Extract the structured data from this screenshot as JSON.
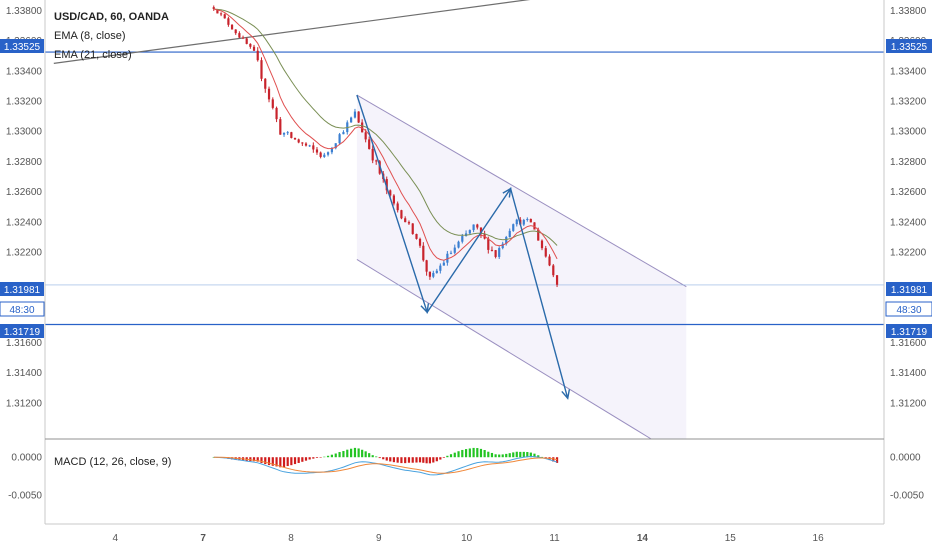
{
  "legend": {
    "symbol": "USD/CAD, 60, OANDA",
    "ema_fast": "EMA (8, close)",
    "ema_slow": "EMA (21, close)",
    "macd": "MACD (12, 26, close, 9)"
  },
  "price_tags": {
    "resistance": "1.33525",
    "last_price": "1.31981",
    "countdown": "48:30",
    "support": "1.31719"
  },
  "colors": {
    "up_candle": "#3b7fd1",
    "down_candle": "#c8232c",
    "ema_fast": "#e05050",
    "ema_slow": "#7a8f55",
    "horizontal_line": "#2962c8",
    "channel_line": "#9a8fc0",
    "channel_fill": "#f5f3fb",
    "trend_arrow": "#2a6aaa",
    "macd_line": "#4aa3df",
    "signal_line": "#f0883a",
    "hist_positive": "#22c422",
    "hist_negative": "#d01c1c"
  },
  "chart_data": {
    "type": "candlestick",
    "symbol": "USD/CAD",
    "timeframe": "60",
    "source": "OANDA",
    "price_ticks": [
      "1.33800",
      "1.33600",
      "1.33400",
      "1.33200",
      "1.33000",
      "1.32800",
      "1.32600",
      "1.32400",
      "1.32200",
      "1.31600",
      "1.31400",
      "1.31200"
    ],
    "x_ticks": [
      "4",
      "7",
      "8",
      "9",
      "10",
      "11",
      "14",
      "15",
      "16"
    ],
    "bold_x_ticks": [
      "7",
      "14"
    ],
    "x_tick_positions": [
      3.7,
      4.7,
      5.7,
      6.7,
      7.7,
      8.7,
      9.7,
      10.7,
      11.7
    ],
    "ylim": [
      1.3096,
      1.3387
    ],
    "xlim": [
      2.9,
      12.45
    ],
    "macd_ticks": [
      "0.0000",
      "-0.0050"
    ],
    "macd_ylim": [
      -0.0088,
      0.0024
    ],
    "horizontal_levels": [
      {
        "price": 1.33525
      },
      {
        "price": 1.31719
      }
    ],
    "last_price": 1.31981,
    "upper_trendline": [
      [
        3.0,
        1.3345
      ],
      [
        8.5,
        1.3388
      ]
    ],
    "channel": {
      "upper": [
        [
          6.45,
          1.3324
        ],
        [
          10.2,
          1.3197
        ]
      ],
      "lower": [
        [
          6.45,
          1.3215
        ],
        [
          9.8,
          1.3096
        ]
      ],
      "fill_right_x": 10.2
    },
    "zigzag": [
      [
        6.45,
        1.3324
      ],
      [
        7.25,
        1.318
      ],
      [
        8.2,
        1.3262
      ],
      [
        8.85,
        1.3123
      ]
    ],
    "candle_segments": [
      {
        "x": [
          4.8,
          5.3
        ],
        "price": [
          1.3385,
          1.3352
        ],
        "vol": 0.00015
      },
      {
        "x": [
          5.3,
          5.6
        ],
        "price": [
          1.3352,
          1.33
        ],
        "vol": 0.0003
      },
      {
        "x": [
          5.6,
          6.1
        ],
        "price": [
          1.33,
          1.3283
        ],
        "vol": 0.00025
      },
      {
        "x": [
          6.1,
          6.45
        ],
        "price": [
          1.3283,
          1.3312
        ],
        "vol": 0.0002
      },
      {
        "x": [
          6.45,
          6.85
        ],
        "price": [
          1.3312,
          1.3255
        ],
        "vol": 0.0003
      },
      {
        "x": [
          6.85,
          7.15
        ],
        "price": [
          1.3255,
          1.323
        ],
        "vol": 0.0002
      },
      {
        "x": [
          7.15,
          7.3
        ],
        "price": [
          1.323,
          1.3201
        ],
        "vol": 0.0003
      },
      {
        "x": [
          7.3,
          7.5
        ],
        "price": [
          1.3201,
          1.3217
        ],
        "vol": 0.00025
      },
      {
        "x": [
          7.5,
          7.8
        ],
        "price": [
          1.3217,
          1.3237
        ],
        "vol": 0.00025
      },
      {
        "x": [
          7.8,
          8.05
        ],
        "price": [
          1.3237,
          1.3218
        ],
        "vol": 0.0003
      },
      {
        "x": [
          8.05,
          8.25
        ],
        "price": [
          1.3218,
          1.324
        ],
        "vol": 0.0002
      },
      {
        "x": [
          8.25,
          8.45
        ],
        "price": [
          1.324,
          1.324
        ],
        "vol": 0.0002
      },
      {
        "x": [
          8.45,
          8.75
        ],
        "price": [
          1.324,
          1.32
        ],
        "vol": 0.0002
      }
    ],
    "candle_spacing": 0.0417,
    "ema_fast_period": 8,
    "ema_slow_period": 21,
    "macd_params": [
      12,
      26,
      9
    ]
  }
}
